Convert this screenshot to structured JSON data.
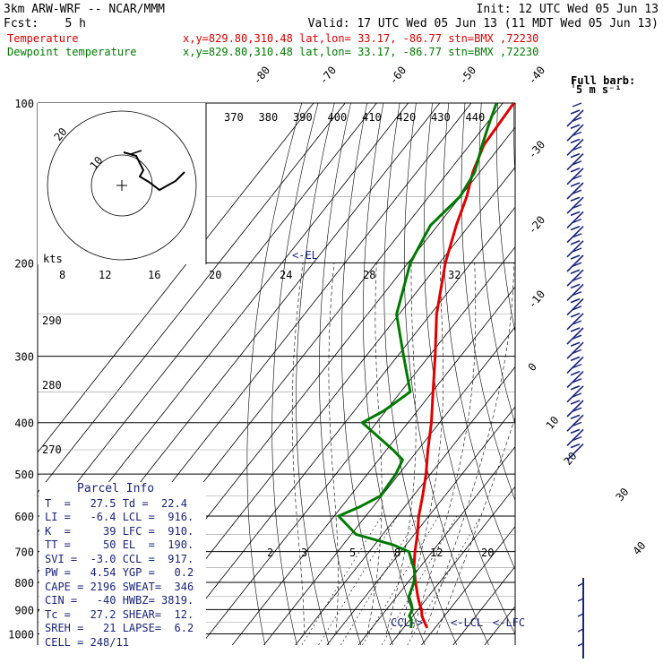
{
  "header": {
    "model": "3km ARW-WRF -- NCAR/MMM",
    "init": "Init: 12 UTC Wed 05 Jun 13",
    "fcst_label": "Fcst:",
    "fcst_value": "5 h",
    "valid": "Valid: 17 UTC Wed 05 Jun 13 (11 MDT Wed 05 Jun 13)"
  },
  "legend": [
    {
      "name": "Temperature",
      "color": "#e00000",
      "info": "x,y=829.80,310.48   lat,lon= 33.17, -86.77   stn=BMX ,72230"
    },
    {
      "name": "Dewpoint temperature",
      "color": "#007a00",
      "info": "x,y=829.80,310.48   lat,lon= 33.17, -86.77   stn=BMX ,72230"
    }
  ],
  "chart_data": {
    "type": "line",
    "skewt": true,
    "pressure_axis": [
      100,
      200,
      300,
      400,
      500,
      600,
      700,
      800,
      900,
      1000
    ],
    "temp_axis_top": [
      -80,
      -70,
      -60,
      -50,
      -40
    ],
    "temp_axis_right": [
      -30,
      -20,
      -10,
      0,
      10,
      20,
      30,
      40
    ],
    "theta_labels": [
      370,
      380,
      390,
      400,
      410,
      420,
      430,
      440
    ],
    "theta_left_labels": [
      290,
      280,
      270
    ],
    "mixing_ratio_labels": [
      2,
      3,
      5,
      8,
      12,
      20
    ],
    "series": [
      {
        "name": "Temperature",
        "color": "#e00000",
        "p": [
          975,
          940,
          925,
          900,
          880,
          850,
          800,
          750,
          700,
          650,
          600,
          550,
          500,
          450,
          400,
          350,
          300,
          250,
          200,
          170,
          150,
          135,
          120,
          100
        ],
        "t": [
          27.5,
          24.2,
          22.8,
          21.1,
          19.2,
          16.6,
          12.4,
          8.2,
          4.5,
          1.0,
          -3.2,
          -7.0,
          -11.4,
          -16.9,
          -22.6,
          -29.8,
          -38.0,
          -48.1,
          -58.2,
          -64.1,
          -68.0,
          -72.2,
          -75.5,
          -76.5
        ]
      },
      {
        "name": "Dewpoint temperature",
        "color": "#007a00",
        "p": [
          975,
          940,
          925,
          900,
          880,
          850,
          800,
          760,
          730,
          700,
          680,
          650,
          600,
          575,
          550,
          500,
          470,
          450,
          400,
          380,
          350,
          300,
          250,
          200,
          170,
          150,
          135,
          120,
          110,
          100
        ],
        "t": [
          22.4,
          20.4,
          18.8,
          18.2,
          16.6,
          13.8,
          11.9,
          9.2,
          5.9,
          2.6,
          -4.0,
          -18.4,
          -28.6,
          -24.0,
          -20.4,
          -21.0,
          -22.4,
          -28.0,
          -44.5,
          -40.6,
          -37.0,
          -48.0,
          -60.8,
          -69.3,
          -72.3,
          -70.1,
          -71.6,
          -76.0,
          -79.0,
          -82.0
        ]
      }
    ],
    "annotations": [
      "<-EL",
      "CCL->",
      "<-LCL",
      "<-LFC"
    ],
    "hodograph": {
      "rings": [
        "20",
        "10"
      ],
      "speed_axis_label": "kts",
      "speed_ticks": [
        8,
        12,
        16,
        20,
        24,
        28,
        32
      ]
    },
    "wind_barb_label": "Full barb:",
    "wind_barb_unit": "5 m s⁻¹"
  },
  "parcel_info": {
    "title": "Parcel Info",
    "rows": [
      "T  =   27.5 Td =  22.4",
      "LI =   -6.4 LCL =  916.",
      "K  =     39 LFC =  910.",
      "TT =     50 EL  =  190.",
      "SVI =  -3.0 CCL =  917.",
      "PW =   4.54 YGP =   0.2",
      "CAPE = 2196 SWEAT=  346",
      "CIN =   -40 HWBZ= 3819.",
      "Tc =   27.2 SHEAR=  12.",
      "SREH =   21 LAPSE=  6.2",
      "CELL = 248/11"
    ]
  }
}
